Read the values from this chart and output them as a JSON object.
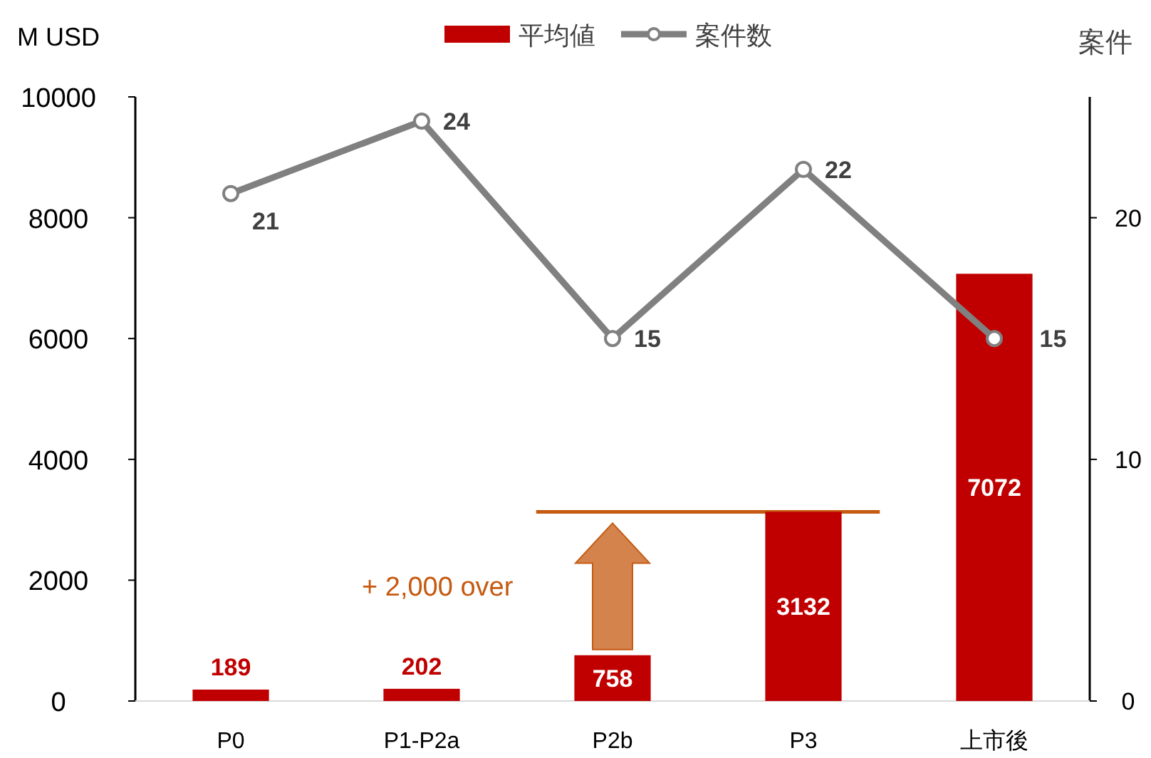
{
  "chart_data": {
    "type": "bar",
    "ylabel": "M USD",
    "y2label": "案件",
    "categories": [
      "P0",
      "P1-P2a",
      "P2b",
      "P3",
      "上市後"
    ],
    "series": [
      {
        "name": "平均値",
        "color": "#c00000",
        "values": [
          189,
          202,
          758,
          3132,
          7072
        ]
      },
      {
        "name": "案件数",
        "type": "line",
        "axis": "y2",
        "color": "#808080",
        "values": [
          21,
          24,
          15,
          22,
          15
        ]
      }
    ],
    "ylim": [
      0,
      10000
    ],
    "yticks": [
      0,
      2000,
      4000,
      6000,
      8000,
      10000
    ],
    "y2lim": [
      0,
      25
    ],
    "y2ticks": [
      0,
      10,
      20
    ],
    "ref_lines": [
      {
        "axis": "y",
        "value": 3132,
        "color": "#c55a11"
      }
    ],
    "annotations": [
      "+ 2,000 over"
    ],
    "data_labels": true,
    "legend": "top",
    "marker": "circle"
  }
}
